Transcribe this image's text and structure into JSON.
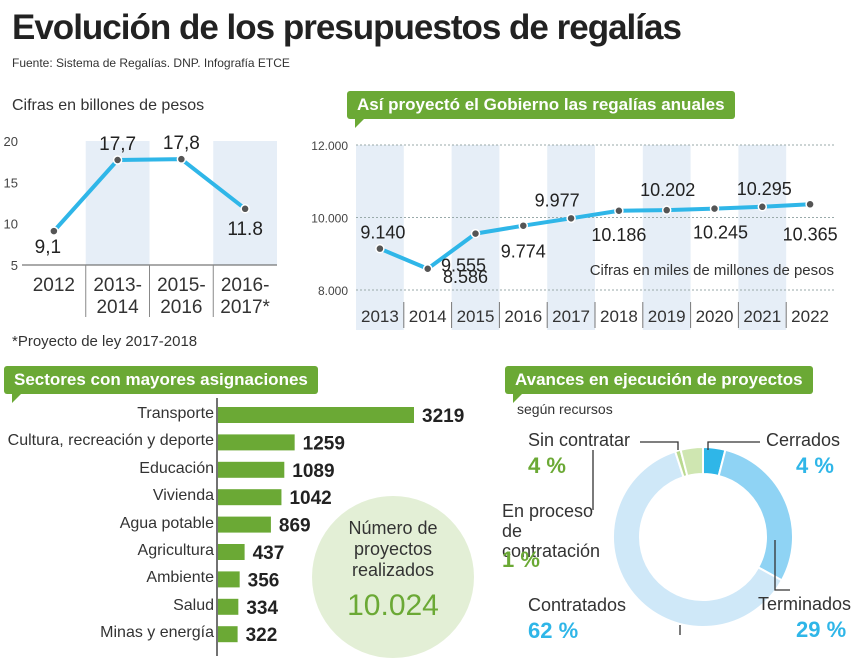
{
  "header": {
    "title": "Evolución de los presupuestos de regalías",
    "source": "Fuente: Sistema de Regalías. DNP. Infografía ETCE"
  },
  "colors": {
    "accent_green": "#6ba935",
    "line_blue": "#2fb6e8",
    "band_blue": "#e6eef7",
    "light_blue": "#cfe8f8",
    "donut_blue": "#8fd3f4"
  },
  "chart_data": [
    {
      "type": "line",
      "title": "",
      "units_note": "Cifras en billones de pesos",
      "categories": [
        "2012",
        "2013-\n2014",
        "2015-\n2016",
        "2016-\n2017*"
      ],
      "values": [
        9.1,
        17.7,
        17.8,
        11.8
      ],
      "value_labels": [
        "9,1",
        "17,7",
        "17,8",
        "11.8"
      ],
      "ylim": [
        5,
        20
      ],
      "yticks": [
        "5",
        "10",
        "15",
        "20"
      ],
      "footnote": "*Proyecto de ley 2017-2018"
    },
    {
      "type": "line",
      "title": "Así proyectó el Gobierno las regalías anuales",
      "units_note": "Cifras en miles de millones de pesos",
      "categories": [
        "2013",
        "2014",
        "2015",
        "2016",
        "2017",
        "2018",
        "2019",
        "2020",
        "2021",
        "2022"
      ],
      "values": [
        9140,
        8586,
        9555,
        9774,
        9977,
        10186,
        10202,
        10245,
        10295,
        10365
      ],
      "value_labels": [
        "9.140",
        "8.586",
        "9.555",
        "9.774",
        "9.977",
        "10.186",
        "10.202",
        "10.245",
        "10.295",
        "10.365"
      ],
      "ylim": [
        8000,
        12000
      ],
      "yticks": [
        "8.000",
        "10.000",
        "12.000"
      ]
    },
    {
      "type": "bar",
      "title": "Sectores con mayores asignaciones",
      "categories": [
        "Transporte",
        "Cultura, recreación y deporte",
        "Educación",
        "Vivienda",
        "Agua potable",
        "Agricultura",
        "Ambiente",
        "Salud",
        "Minas y energía"
      ],
      "values": [
        3219,
        1259,
        1089,
        1042,
        869,
        437,
        356,
        334,
        322
      ]
    },
    {
      "type": "pie",
      "title": "Avances en ejecución de proyectos",
      "subtitle": "según recursos",
      "slices": [
        {
          "label": "Cerrados",
          "pct": "4 %",
          "value": 4
        },
        {
          "label": "Terminados",
          "pct": "29 %",
          "value": 29
        },
        {
          "label": "Contratados",
          "pct": "62 %",
          "value": 62
        },
        {
          "label": "En proceso de contratación",
          "pct": "1 %",
          "value": 1
        },
        {
          "label": "Sin contratar",
          "pct": "4 %",
          "value": 4
        }
      ]
    }
  ],
  "badge": {
    "title": "Número de proyectos realizados",
    "value": "10.024"
  }
}
